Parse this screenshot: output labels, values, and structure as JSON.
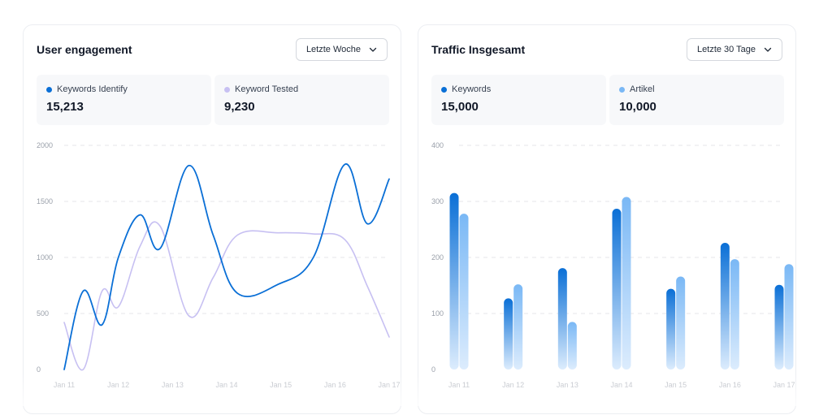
{
  "colors": {
    "series_dark": "#0a6fd6",
    "series_light": "#c7c0f2",
    "bar_a_top": "#0a6fd6",
    "bar_b_top": "#7ab8f5",
    "grid": "#e4e6ea"
  },
  "left_card": {
    "title": "User engagement",
    "dropdown_label": "Letzte Woche",
    "dropdown_icon": "chevron-down-icon",
    "stats": [
      {
        "label": "Keywords Identify",
        "value": "15,213"
      },
      {
        "label": "Keyword Tested",
        "value": "9,230"
      }
    ]
  },
  "right_card": {
    "title": "Traffic Insgesamt",
    "dropdown_label": "Letzte 30 Tage",
    "dropdown_icon": "chevron-down-icon",
    "stats": [
      {
        "label": "Keywords",
        "value": "15,000"
      },
      {
        "label": "Artikel",
        "value": "10,000"
      }
    ]
  },
  "chart_data": [
    {
      "type": "line",
      "title": "User engagement",
      "categories": [
        "Jan 11",
        "Jan 12",
        "Jan 13",
        "Jan 14",
        "Jan 15",
        "Jan 16",
        "Jan 17"
      ],
      "x": [
        0,
        0.35,
        0.7,
        1.0,
        1.4,
        1.77,
        2.3,
        2.75,
        3.2,
        3.95,
        4.6,
        5.18,
        5.6,
        6.0
      ],
      "series": [
        {
          "name": "Keywords Identify",
          "values": [
            0,
            700,
            400,
            1000,
            1380,
            1080,
            1820,
            1200,
            680,
            760,
            1000,
            1830,
            1300,
            1700
          ]
        },
        {
          "name": "Keyword Tested",
          "values": [
            420,
            0,
            700,
            560,
            1100,
            1280,
            480,
            820,
            1200,
            1220,
            1210,
            1160,
            740,
            290
          ]
        }
      ],
      "yticks": [
        0,
        500,
        1000,
        1500,
        2000
      ],
      "ylim": [
        0,
        2000
      ],
      "grid": true
    },
    {
      "type": "bar",
      "title": "Traffic Insgesamt",
      "categories": [
        "Jan 11",
        "Jan 12",
        "Jan 13",
        "Jan 14",
        "Jan 15",
        "Jan 16",
        "Jan 17"
      ],
      "series": [
        {
          "name": "Keywords",
          "values": [
            315,
            127,
            181,
            287,
            144,
            226,
            151
          ]
        },
        {
          "name": "Artikel",
          "values": [
            278,
            152,
            85,
            308,
            166,
            197,
            188
          ]
        }
      ],
      "yticks": [
        0,
        100,
        200,
        300,
        400
      ],
      "ylim": [
        0,
        400
      ],
      "grid": true
    }
  ]
}
